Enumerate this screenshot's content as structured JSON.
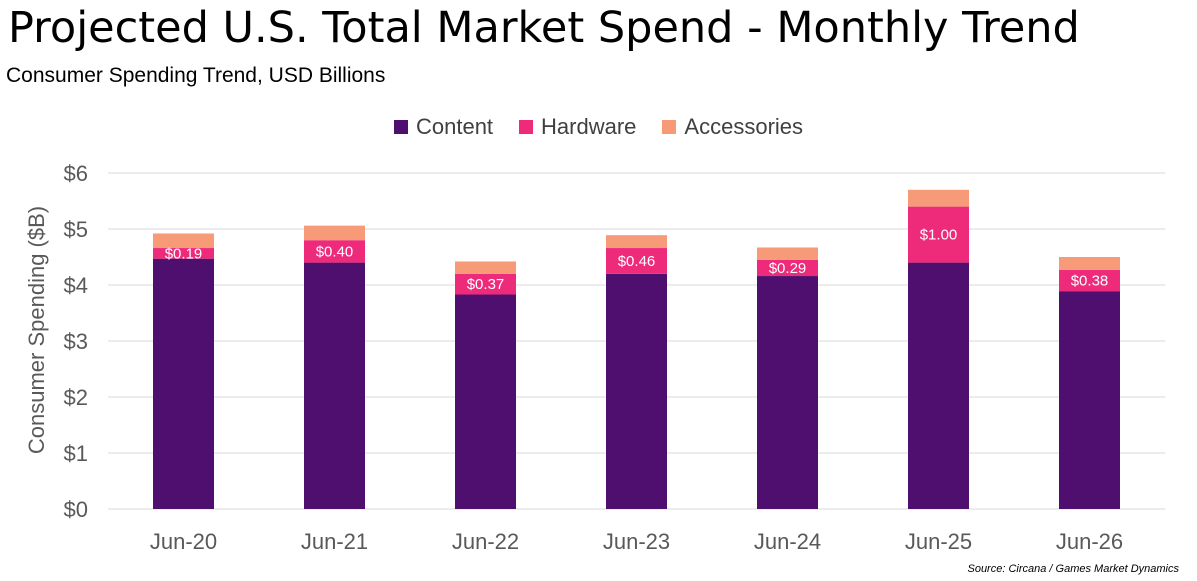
{
  "title": "Projected U.S. Total Market Spend - Monthly Trend",
  "subtitle": "Consumer Spending Trend, USD Billions",
  "source": "Source: Circana / Games Market Dynamics",
  "colors": {
    "content": "#4e0f6e",
    "hardware": "#ee2a7b",
    "accessories": "#f79a78",
    "grid": "#d9d9d9",
    "axis_text": "#595959"
  },
  "chart_data": {
    "type": "bar",
    "stacked": true,
    "categories": [
      "Jun-20",
      "Jun-21",
      "Jun-22",
      "Jun-23",
      "Jun-24",
      "Jun-25",
      "Jun-26"
    ],
    "series": [
      {
        "name": "Content",
        "values": [
          4.47,
          4.4,
          3.83,
          4.2,
          4.16,
          4.4,
          3.89
        ]
      },
      {
        "name": "Hardware",
        "values": [
          0.19,
          0.4,
          0.37,
          0.46,
          0.29,
          1.0,
          0.38
        ]
      },
      {
        "name": "Accessories",
        "values": [
          0.26,
          0.26,
          0.22,
          0.23,
          0.22,
          0.3,
          0.23
        ]
      }
    ],
    "data_labels": {
      "series": "Hardware",
      "labels": [
        "$0.19",
        "$0.40",
        "$0.37",
        "$0.46",
        "$0.29",
        "$1.00",
        "$0.38"
      ]
    },
    "title": "Projected U.S. Total Market Spend - Monthly Trend",
    "subtitle": "Consumer Spending Trend, USD Billions",
    "xlabel": "",
    "ylabel": "Consumer Spending ($B)",
    "ylim": [
      0,
      6
    ],
    "yticks": [
      0,
      1,
      2,
      3,
      4,
      5,
      6
    ],
    "ytick_labels": [
      "$0",
      "$1",
      "$2",
      "$3",
      "$4",
      "$5",
      "$6"
    ],
    "grid": true,
    "legend_position": "top-center"
  }
}
